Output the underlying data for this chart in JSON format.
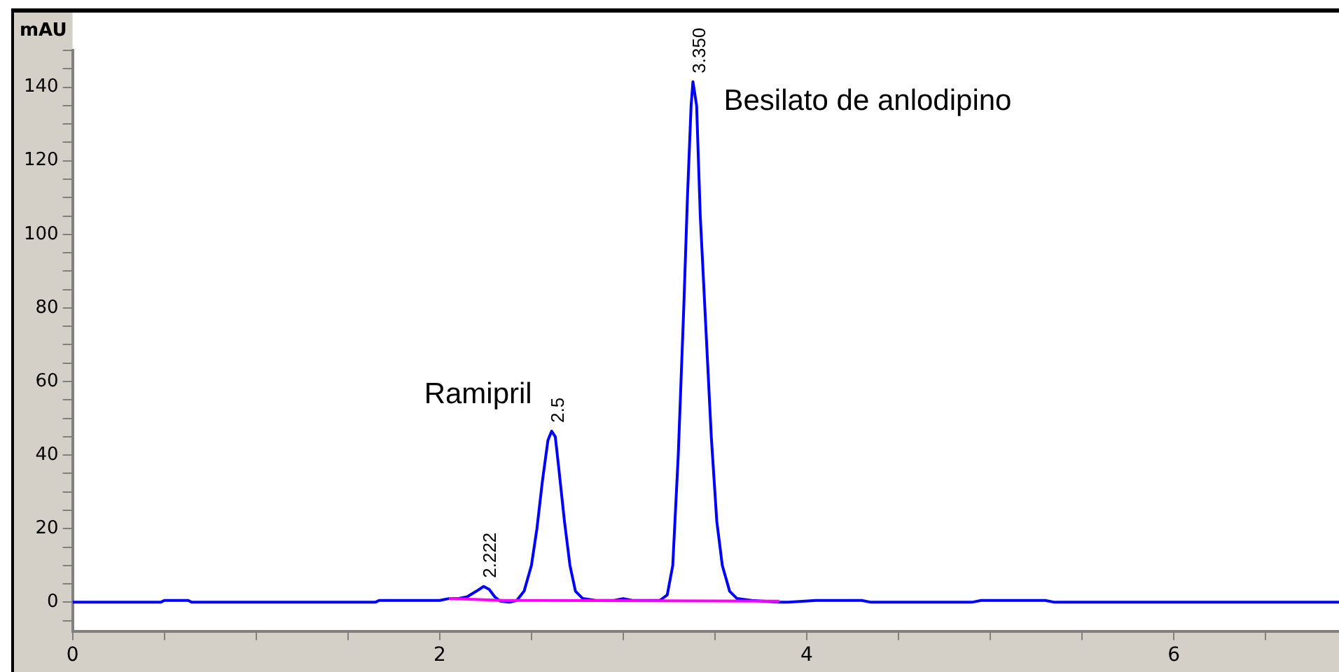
{
  "chart_data": {
    "type": "line",
    "ylabel": "mAU",
    "xlim": [
      0,
      6.9
    ],
    "ylim": [
      -8,
      150
    ],
    "xticks": [
      0,
      {
        "value": 0.5,
        "label": null
      },
      {
        "value": 1,
        "label": null
      },
      {
        "value": 1.5,
        "label": null
      },
      2,
      {
        "value": 2.5,
        "label": null
      },
      {
        "value": 3,
        "label": null
      },
      {
        "value": 3.5,
        "label": null
      },
      4,
      {
        "value": 4.5,
        "label": null
      },
      {
        "value": 5,
        "label": null
      },
      {
        "value": 5.5,
        "label": null
      },
      6,
      {
        "value": 6.5,
        "label": null
      }
    ],
    "yticks": [
      {
        "value": -5,
        "label": null
      },
      0,
      {
        "value": 5,
        "label": null
      },
      {
        "value": 10,
        "label": null
      },
      {
        "value": 15,
        "label": null
      },
      20,
      {
        "value": 25,
        "label": null
      },
      {
        "value": 30,
        "label": null
      },
      {
        "value": 35,
        "label": null
      },
      40,
      {
        "value": 45,
        "label": null
      },
      {
        "value": 50,
        "label": null
      },
      {
        "value": 55,
        "label": null
      },
      60,
      {
        "value": 65,
        "label": null
      },
      {
        "value": 70,
        "label": null
      },
      {
        "value": 75,
        "label": null
      },
      80,
      {
        "value": 85,
        "label": null
      },
      {
        "value": 90,
        "label": null
      },
      {
        "value": 95,
        "label": null
      },
      100,
      {
        "value": 105,
        "label": null
      },
      {
        "value": 110,
        "label": null
      },
      {
        "value": 115,
        "label": null
      },
      120,
      {
        "value": 125,
        "label": null
      },
      {
        "value": 130,
        "label": null
      },
      {
        "value": 135,
        "label": null
      },
      140,
      {
        "value": 145,
        "label": null
      },
      {
        "value": 150,
        "label": null
      }
    ],
    "grid": false,
    "legend": false,
    "marker": "none",
    "line_style": "solid",
    "series": [
      {
        "color": "#0000ff",
        "x": [
          0,
          0.48,
          0.5,
          0.63,
          0.65,
          1.65,
          1.67,
          2.0,
          2.05,
          2.1,
          2.15,
          2.2,
          2.24,
          2.27,
          2.3,
          2.33,
          2.38,
          2.42,
          2.46,
          2.5,
          2.53,
          2.56,
          2.59,
          2.61,
          2.63,
          2.65,
          2.68,
          2.71,
          2.74,
          2.78,
          2.85,
          2.95,
          3.0,
          3.05,
          3.2,
          3.24,
          3.27,
          3.3,
          3.33,
          3.35,
          3.37,
          3.38,
          3.4,
          3.42,
          3.45,
          3.48,
          3.51,
          3.54,
          3.58,
          3.62,
          3.7,
          3.85,
          3.9,
          4.05,
          4.3,
          4.35,
          4.9,
          4.95,
          5.3,
          5.35,
          6.9
        ],
        "values": [
          0,
          0,
          0.5,
          0.5,
          0,
          0,
          0.5,
          0.5,
          1,
          1,
          1.5,
          3,
          4.3,
          3.5,
          1.5,
          0.3,
          0,
          0.5,
          3,
          10,
          20,
          33,
          44,
          46.5,
          45,
          36,
          22,
          10,
          3,
          1,
          0.5,
          0.5,
          1,
          0.5,
          0.5,
          2,
          10,
          40,
          80,
          110,
          135,
          141.5,
          135,
          105,
          75,
          45,
          22,
          10,
          3,
          1,
          0.5,
          0,
          0,
          0.5,
          0.5,
          0,
          0,
          0.5,
          0.5,
          0,
          0
        ]
      },
      {
        "color": "#ff00ff",
        "x": [
          2.05,
          2.35,
          3.85
        ],
        "values": [
          1,
          0.5,
          0.3
        ]
      }
    ],
    "annotations": [
      {
        "text": "2.222",
        "x": 2.24,
        "y": 4.3
      },
      {
        "text": "2.5",
        "x": 2.61,
        "y": 46.5
      },
      {
        "text": "3.350",
        "x": 3.38,
        "y": 141.5
      },
      {
        "text": "Ramipril",
        "x": 2.61,
        "y": 46.5
      },
      {
        "text": "Besilato de anlodipino",
        "x": 3.38,
        "y": 141.5
      }
    ]
  }
}
